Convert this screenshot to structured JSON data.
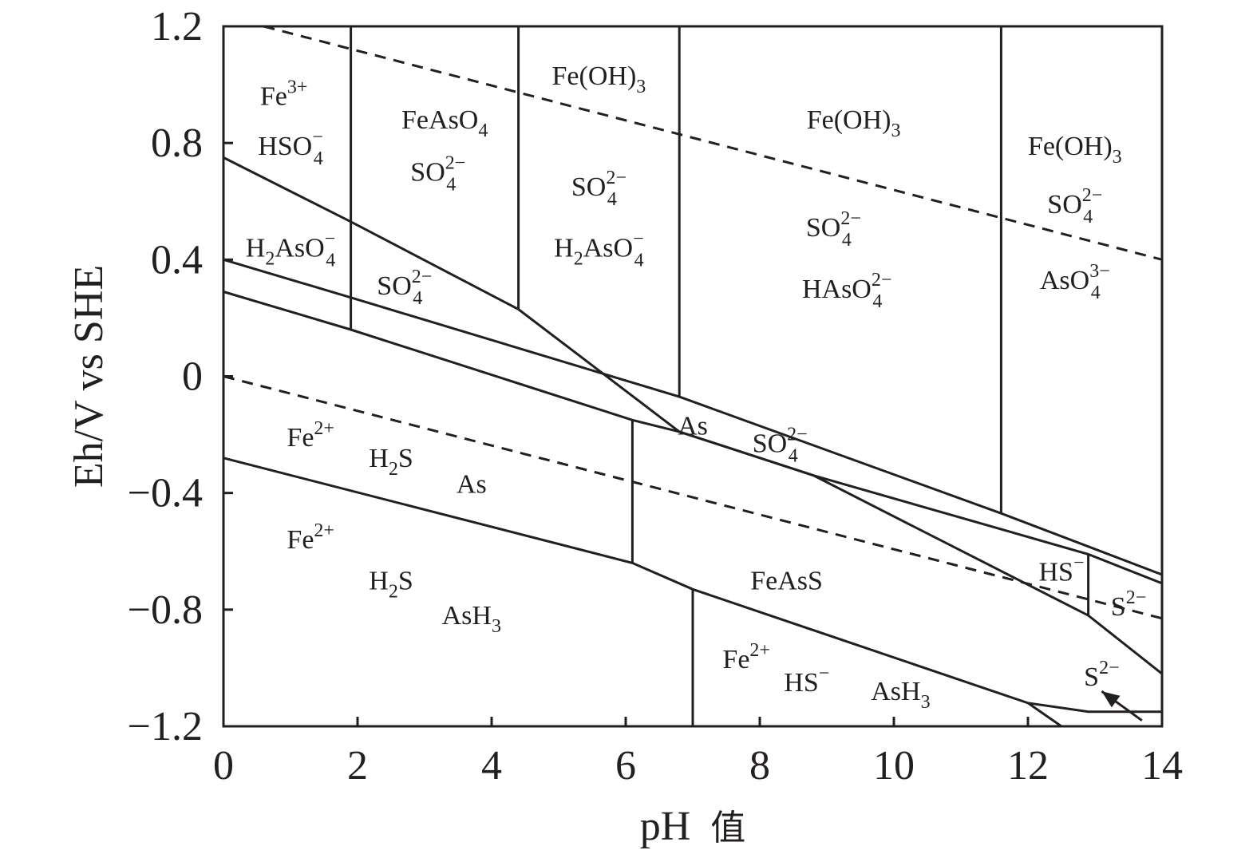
{
  "chart_data": {
    "type": "line",
    "xlabel": "pH",
    "xlabel_cjk": "值",
    "ylabel": "Eh/V vs SHE",
    "xlim": [
      0,
      14
    ],
    "ylim": [
      -1.2,
      1.2
    ],
    "x_ticks": [
      "0",
      "2",
      "4",
      "6",
      "8",
      "10",
      "12",
      "14"
    ],
    "y_ticks": [
      {
        "value": 1.2,
        "label": "1.2"
      },
      {
        "value": 0.8,
        "label": "0.8"
      },
      {
        "value": 0.4,
        "label": "0.4"
      },
      {
        "value": 0,
        "label": "0"
      },
      {
        "value": -0.4,
        "label": "−0.4"
      },
      {
        "value": -0.8,
        "label": "−0.8"
      },
      {
        "value": -1.2,
        "label": "−1.2"
      }
    ],
    "boundaries": [
      {
        "style": "dashed",
        "points": [
          [
            0.6,
            1.2
          ],
          [
            14,
            0.4
          ]
        ]
      },
      {
        "style": "dashed",
        "points": [
          [
            0,
            0
          ],
          [
            14,
            -0.83
          ]
        ]
      },
      {
        "style": "solid",
        "points": [
          [
            0,
            0.75
          ],
          [
            1.9,
            0.53
          ],
          [
            4.4,
            0.23
          ],
          [
            6.8,
            -0.19
          ],
          [
            8.8,
            -0.34
          ],
          [
            12.9,
            -0.82
          ],
          [
            14,
            -1.02
          ]
        ]
      },
      {
        "style": "solid",
        "points": [
          [
            0,
            0.4
          ],
          [
            1.9,
            0.27
          ],
          [
            6.8,
            -0.07
          ],
          [
            11.6,
            -0.47
          ],
          [
            14,
            -0.68
          ]
        ]
      },
      {
        "style": "solid",
        "points": [
          [
            0,
            0.29
          ],
          [
            1.9,
            0.16
          ],
          [
            6.1,
            -0.15
          ],
          [
            6.8,
            -0.19
          ],
          [
            8.8,
            -0.34
          ],
          [
            12.9,
            -0.61
          ],
          [
            14,
            -0.71
          ]
        ]
      },
      {
        "style": "solid",
        "points": [
          [
            0,
            -0.28
          ],
          [
            6.1,
            -0.64
          ],
          [
            7.0,
            -0.73
          ],
          [
            12.0,
            -1.12
          ],
          [
            12.9,
            -1.15
          ],
          [
            14,
            -1.15
          ]
        ]
      },
      {
        "style": "solid",
        "points": [
          [
            12.0,
            -1.12
          ],
          [
            12.5,
            -1.2
          ]
        ]
      },
      {
        "style": "solid",
        "points": [
          [
            1.9,
            1.2
          ],
          [
            1.9,
            0.16
          ]
        ]
      },
      {
        "style": "solid",
        "points": [
          [
            4.4,
            1.2
          ],
          [
            4.4,
            0.23
          ]
        ]
      },
      {
        "style": "solid",
        "points": [
          [
            6.8,
            1.2
          ],
          [
            6.8,
            -0.07
          ]
        ]
      },
      {
        "style": "solid",
        "points": [
          [
            11.6,
            1.2
          ],
          [
            11.6,
            -0.47
          ]
        ]
      },
      {
        "style": "solid",
        "points": [
          [
            6.1,
            -0.15
          ],
          [
            6.1,
            -0.64
          ]
        ]
      },
      {
        "style": "solid",
        "points": [
          [
            7.0,
            -0.73
          ],
          [
            7.0,
            -1.2
          ]
        ]
      },
      {
        "style": "solid",
        "points": [
          [
            12.9,
            -0.61
          ],
          [
            12.9,
            -0.82
          ]
        ]
      }
    ],
    "arrow": {
      "from": [
        13.7,
        -1.18
      ],
      "to": [
        13.1,
        -1.08
      ]
    },
    "regions": [
      {
        "x": 0.9,
        "y": 0.96,
        "parts": [
          {
            "t": "Fe"
          },
          {
            "t": "3+",
            "s": "sup"
          }
        ]
      },
      {
        "x": 1.0,
        "y": 0.79,
        "parts": [
          {
            "t": "HSO"
          },
          {
            "t": "−",
            "s": "sup"
          },
          {
            "t": "4",
            "s": "sub"
          }
        ]
      },
      {
        "x": 3.3,
        "y": 0.88,
        "parts": [
          {
            "t": "FeAsO"
          },
          {
            "t": "4",
            "s": "sub"
          }
        ]
      },
      {
        "x": 3.2,
        "y": 0.7,
        "parts": [
          {
            "t": "SO"
          },
          {
            "t": "2−",
            "s": "sup"
          },
          {
            "t": "4",
            "s": "sub"
          }
        ]
      },
      {
        "x": 5.6,
        "y": 1.03,
        "parts": [
          {
            "t": "Fe(OH)"
          },
          {
            "t": "3",
            "s": "sub"
          }
        ]
      },
      {
        "x": 5.6,
        "y": 0.65,
        "parts": [
          {
            "t": "SO"
          },
          {
            "t": "2−",
            "s": "sup"
          },
          {
            "t": "4",
            "s": "sub"
          }
        ]
      },
      {
        "x": 5.6,
        "y": 0.44,
        "parts": [
          {
            "t": "H"
          },
          {
            "t": "2",
            "s": "sub"
          },
          {
            "t": "AsO"
          },
          {
            "t": "−",
            "s": "sup"
          },
          {
            "t": "4",
            "s": "sub"
          }
        ]
      },
      {
        "x": 9.4,
        "y": 0.88,
        "parts": [
          {
            "t": "Fe(OH)"
          },
          {
            "t": "3",
            "s": "sub"
          }
        ]
      },
      {
        "x": 9.1,
        "y": 0.51,
        "parts": [
          {
            "t": "SO"
          },
          {
            "t": "2−",
            "s": "sup"
          },
          {
            "t": "4",
            "s": "sub"
          }
        ]
      },
      {
        "x": 9.3,
        "y": 0.3,
        "parts": [
          {
            "t": "HAsO"
          },
          {
            "t": "2−",
            "s": "sup"
          },
          {
            "t": "4",
            "s": "sub"
          }
        ]
      },
      {
        "x": 12.7,
        "y": 0.79,
        "parts": [
          {
            "t": "Fe(OH)"
          },
          {
            "t": "3",
            "s": "sub"
          }
        ]
      },
      {
        "x": 12.7,
        "y": 0.59,
        "parts": [
          {
            "t": "SO"
          },
          {
            "t": "2−",
            "s": "sup"
          },
          {
            "t": "4",
            "s": "sub"
          }
        ]
      },
      {
        "x": 12.7,
        "y": 0.33,
        "parts": [
          {
            "t": "AsO"
          },
          {
            "t": "3−",
            "s": "sup"
          },
          {
            "t": "4",
            "s": "sub"
          }
        ]
      },
      {
        "x": 1.0,
        "y": 0.44,
        "parts": [
          {
            "t": "H"
          },
          {
            "t": "2",
            "s": "sub"
          },
          {
            "t": "AsO"
          },
          {
            "t": "−",
            "s": "sup"
          },
          {
            "t": "4",
            "s": "sub"
          }
        ]
      },
      {
        "x": 2.7,
        "y": 0.31,
        "parts": [
          {
            "t": "SO"
          },
          {
            "t": "2−",
            "s": "sup"
          },
          {
            "t": "4",
            "s": "sub"
          }
        ]
      },
      {
        "x": 7.0,
        "y": -0.17,
        "parts": [
          {
            "t": "As"
          }
        ]
      },
      {
        "x": 8.3,
        "y": -0.23,
        "parts": [
          {
            "t": "SO"
          },
          {
            "t": "2−",
            "s": "sup"
          },
          {
            "t": "4",
            "s": "sub"
          }
        ]
      },
      {
        "x": 1.3,
        "y": -0.21,
        "parts": [
          {
            "t": "Fe"
          },
          {
            "t": "2+",
            "s": "sup"
          }
        ]
      },
      {
        "x": 2.5,
        "y": -0.28,
        "parts": [
          {
            "t": "H"
          },
          {
            "t": "2",
            "s": "sub"
          },
          {
            "t": "S"
          }
        ]
      },
      {
        "x": 3.7,
        "y": -0.37,
        "parts": [
          {
            "t": "As"
          }
        ]
      },
      {
        "x": 1.3,
        "y": -0.56,
        "parts": [
          {
            "t": "Fe"
          },
          {
            "t": "2+",
            "s": "sup"
          }
        ]
      },
      {
        "x": 2.5,
        "y": -0.7,
        "parts": [
          {
            "t": "H"
          },
          {
            "t": "2",
            "s": "sub"
          },
          {
            "t": "S"
          }
        ]
      },
      {
        "x": 3.7,
        "y": -0.82,
        "parts": [
          {
            "t": "AsH"
          },
          {
            "t": "3",
            "s": "sub"
          }
        ]
      },
      {
        "x": 8.4,
        "y": -0.7,
        "parts": [
          {
            "t": "FeAsS"
          }
        ]
      },
      {
        "x": 7.8,
        "y": -0.97,
        "parts": [
          {
            "t": "Fe"
          },
          {
            "t": "2+",
            "s": "sup"
          }
        ]
      },
      {
        "x": 8.7,
        "y": -1.05,
        "parts": [
          {
            "t": "HS"
          },
          {
            "t": "−",
            "s": "sup"
          }
        ]
      },
      {
        "x": 10.1,
        "y": -1.08,
        "parts": [
          {
            "t": "AsH"
          },
          {
            "t": "3",
            "s": "sub"
          }
        ]
      },
      {
        "x": 12.5,
        "y": -0.67,
        "parts": [
          {
            "t": "HS"
          },
          {
            "t": "−",
            "s": "sup"
          }
        ]
      },
      {
        "x": 13.5,
        "y": -0.79,
        "parts": [
          {
            "t": "S"
          },
          {
            "t": "2−",
            "s": "sup"
          }
        ]
      },
      {
        "x": 13.1,
        "y": -1.03,
        "parts": [
          {
            "t": "S"
          },
          {
            "t": "2−",
            "s": "sup"
          }
        ]
      }
    ]
  }
}
